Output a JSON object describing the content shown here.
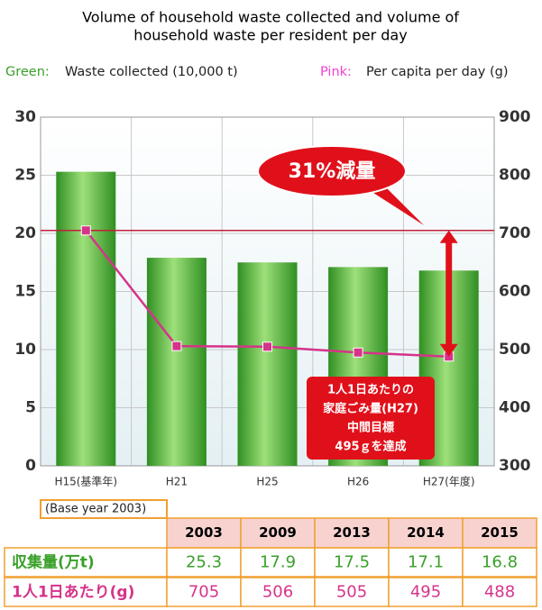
{
  "chart_data": {
    "type": "bar_line",
    "title": [
      "Volume of household waste collected and volume of",
      "household waste per resident per day"
    ],
    "legend_words": [
      "Green:",
      "Pink:"
    ],
    "categories": [
      "H15(基準年)",
      "H21",
      "H25",
      "H26",
      "H27(年度)"
    ],
    "series": [
      {
        "name": "Waste collected (10,000 t)",
        "color": "#3aa02a",
        "values": [
          25.3,
          17.9,
          17.5,
          17.1,
          16.8
        ]
      },
      {
        "name": "Per capita per day (g)",
        "color": "#d6338a",
        "axis": "y2",
        "values": [
          705,
          506,
          505,
          495,
          488
        ]
      }
    ],
    "ylim": [
      0,
      30
    ],
    "yticks": [
      0,
      5,
      10,
      15,
      20,
      25,
      30
    ],
    "y2lim": [
      300,
      900
    ],
    "y2ticks": [
      300,
      400,
      500,
      600,
      700,
      800,
      900
    ],
    "grid": true,
    "reference_line": 705,
    "callout": "31%減量",
    "note": [
      "1人1日あたりの",
      "家庭ごみ量(H27)",
      "中間目標",
      "495ｇを達成"
    ]
  },
  "table": {
    "caption": "(Base year 2003)",
    "years": [
      "2003",
      "2009",
      "2013",
      "2014",
      "2015"
    ],
    "row_labels": [
      "収集量(万t)",
      "1人1日あたり(g)"
    ]
  }
}
